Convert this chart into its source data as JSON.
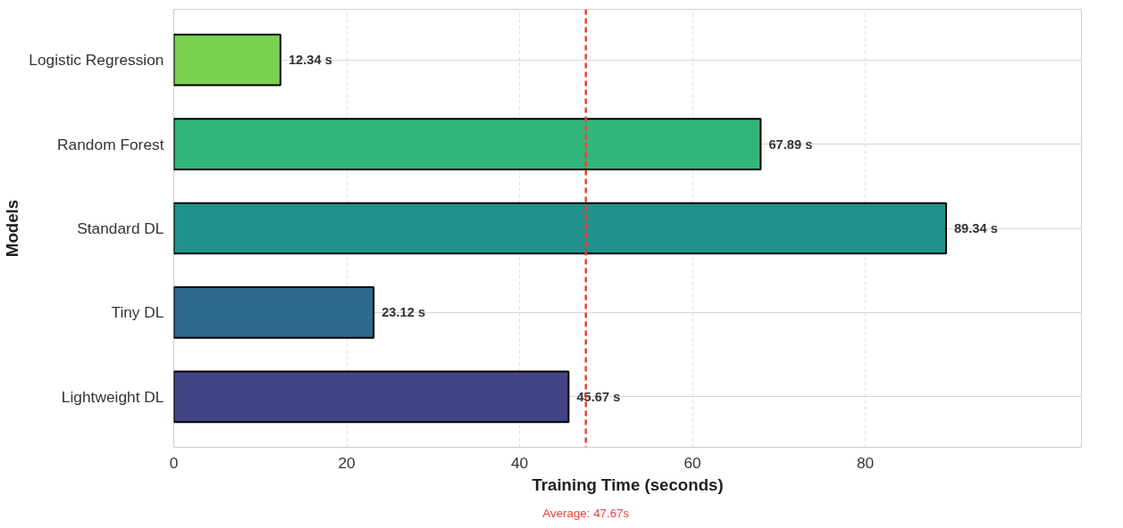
{
  "chart_data": {
    "type": "bar",
    "orientation": "horizontal",
    "xlabel": "Training Time (seconds)",
    "ylabel": "Models",
    "categories": [
      "Logistic Regression",
      "Random Forest",
      "Standard DL",
      "Tiny DL",
      "Lightweight DL"
    ],
    "values": [
      12.34,
      67.89,
      89.34,
      23.12,
      45.67
    ],
    "colors": [
      "#7ad151",
      "#32b57a",
      "#21918c",
      "#306a8e",
      "#414487"
    ],
    "value_labels": [
      "12.34 s",
      "67.89 s",
      "89.34 s",
      "23.12 s",
      "45.67 s"
    ],
    "xlim": [
      0,
      105
    ],
    "xticks": [
      0,
      20,
      40,
      60,
      80
    ],
    "grid": true,
    "ref_lines": [
      {
        "axis": "x",
        "value": 47.67,
        "label": "Average: 47.67s",
        "color": "#e8413c",
        "line_style": "dashed"
      }
    ]
  }
}
